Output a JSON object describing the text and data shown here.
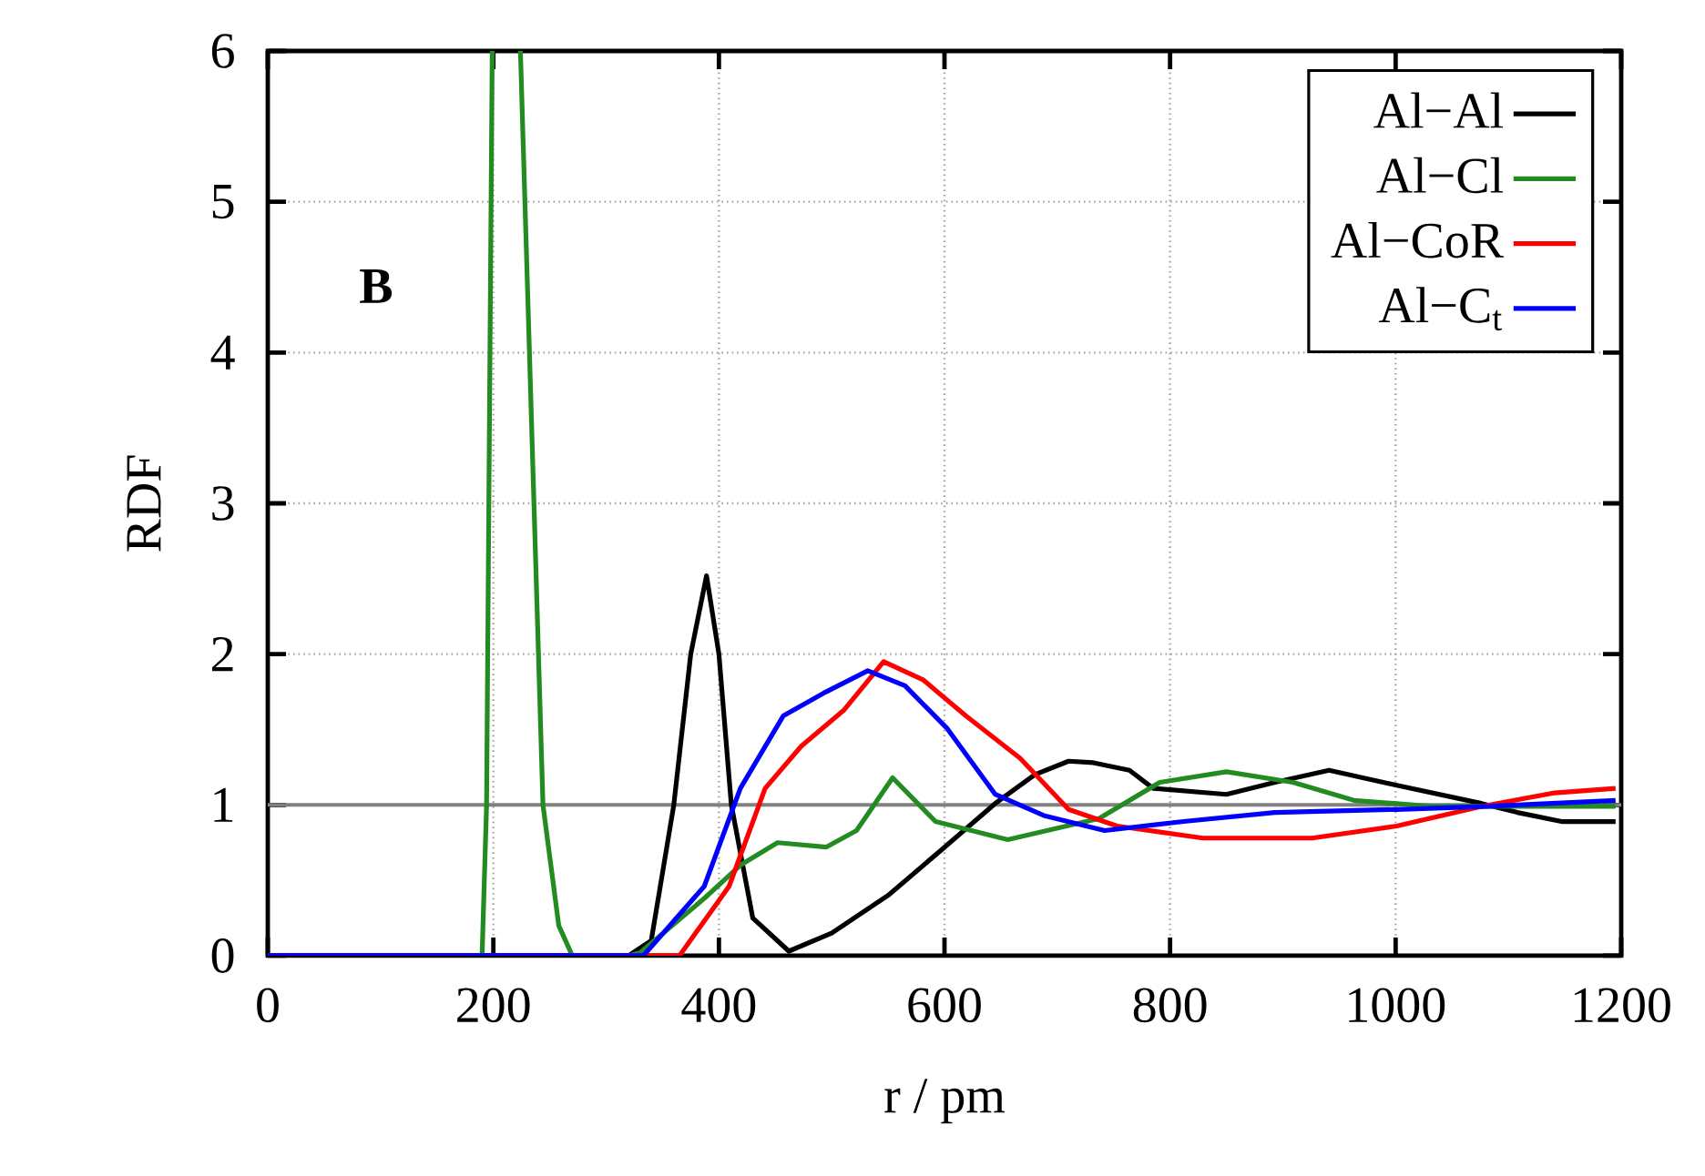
{
  "chart_data": {
    "type": "line",
    "xlabel": "r / pm",
    "ylabel": "RDF",
    "xlim": [
      0,
      1200
    ],
    "xticks": [
      0,
      200,
      400,
      600,
      800,
      1000,
      1200
    ],
    "ylim": [
      0,
      6
    ],
    "yticks": [
      0,
      1,
      2,
      3,
      4,
      5,
      6
    ],
    "grid": true,
    "legend": "top right",
    "annotations": [
      "B"
    ],
    "ref_lines": [
      {
        "axis": "y",
        "value": 1,
        "color": "#808080"
      }
    ],
    "series": [
      {
        "name": "Al−Al",
        "color": "#000000",
        "x": [
          0,
          320,
          340,
          360,
          375,
          389,
          400,
          411,
          430,
          462,
          500,
          550,
          597,
          645,
          680,
          710,
          732,
          764,
          785,
          850,
          893,
          941,
          1001,
          1076,
          1108,
          1147,
          1195
        ],
        "values": [
          0,
          0,
          0.1,
          1.0,
          2.0,
          2.52,
          2.0,
          1.0,
          0.25,
          0.03,
          0.15,
          0.4,
          0.7,
          1.01,
          1.2,
          1.29,
          1.28,
          1.23,
          1.11,
          1.07,
          1.15,
          1.23,
          1.13,
          1.01,
          0.95,
          0.89,
          0.89
        ]
      },
      {
        "name": "Al−Cl",
        "color": "#228b22",
        "x": [
          0,
          190,
          194,
          199,
          212,
          224,
          244,
          258,
          270,
          320,
          330,
          387,
          419,
          452,
          495,
          522,
          554,
          592,
          656,
          737,
          791,
          850,
          909,
          963,
          1034,
          1195
        ],
        "values": [
          0,
          0,
          1,
          6,
          null,
          6,
          1,
          0.2,
          0,
          0,
          0.02,
          0.38,
          0.6,
          0.75,
          0.72,
          0.83,
          1.18,
          0.89,
          0.77,
          0.91,
          1.15,
          1.22,
          1.15,
          1.03,
          0.99,
          0.99
        ]
      },
      {
        "name": "Al−CoR",
        "color": "#ff0000",
        "x": [
          0,
          365,
          409,
          441,
          473,
          511,
          546,
          581,
          619,
          667,
          710,
          753,
          829,
          926,
          1001,
          1076,
          1141,
          1195
        ],
        "values": [
          0,
          0,
          0.46,
          1.11,
          1.39,
          1.63,
          1.95,
          1.83,
          1.59,
          1.31,
          0.97,
          0.86,
          0.78,
          0.78,
          0.86,
          0.99,
          1.08,
          1.11
        ]
      },
      {
        "name": "Al−C$_{t}$",
        "color": "#0000ff",
        "x": [
          0,
          333,
          387,
          419,
          457,
          495,
          532,
          565,
          602,
          645,
          688,
          742,
          812,
          893,
          1001,
          1082,
          1195
        ],
        "values": [
          0,
          0,
          0.46,
          1.11,
          1.59,
          1.75,
          1.89,
          1.79,
          1.51,
          1.07,
          0.93,
          0.83,
          0.89,
          0.95,
          0.97,
          0.99,
          1.03
        ]
      }
    ]
  }
}
